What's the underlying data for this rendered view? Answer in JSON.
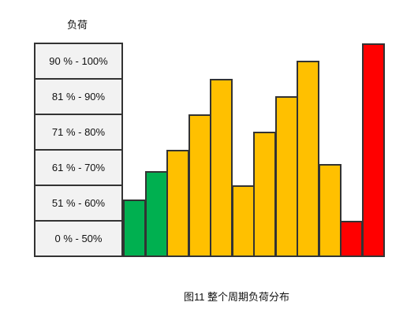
{
  "diagram": {
    "axis_title": "负荷",
    "levels": [
      "90 % - 100%",
      "81 % - 90%",
      "71 % - 80%",
      "61 % - 70%",
      "51 % - 60%",
      "0 % - 50%"
    ],
    "bars": [
      {
        "level": 1.6,
        "color": "#00b050"
      },
      {
        "level": 2.4,
        "color": "#00b050"
      },
      {
        "level": 3.0,
        "color": "#ffc000"
      },
      {
        "level": 4.0,
        "color": "#ffc000"
      },
      {
        "level": 5.0,
        "color": "#ffc000"
      },
      {
        "level": 2.0,
        "color": "#ffc000"
      },
      {
        "level": 3.5,
        "color": "#ffc000"
      },
      {
        "level": 4.5,
        "color": "#ffc000"
      },
      {
        "level": 5.5,
        "color": "#ffc000"
      },
      {
        "level": 2.6,
        "color": "#ffc000"
      },
      {
        "level": 1.0,
        "color": "#ff0000"
      },
      {
        "level": 6.0,
        "color": "#ff0000"
      }
    ],
    "caption": "图11 整个周期负荷分布"
  }
}
